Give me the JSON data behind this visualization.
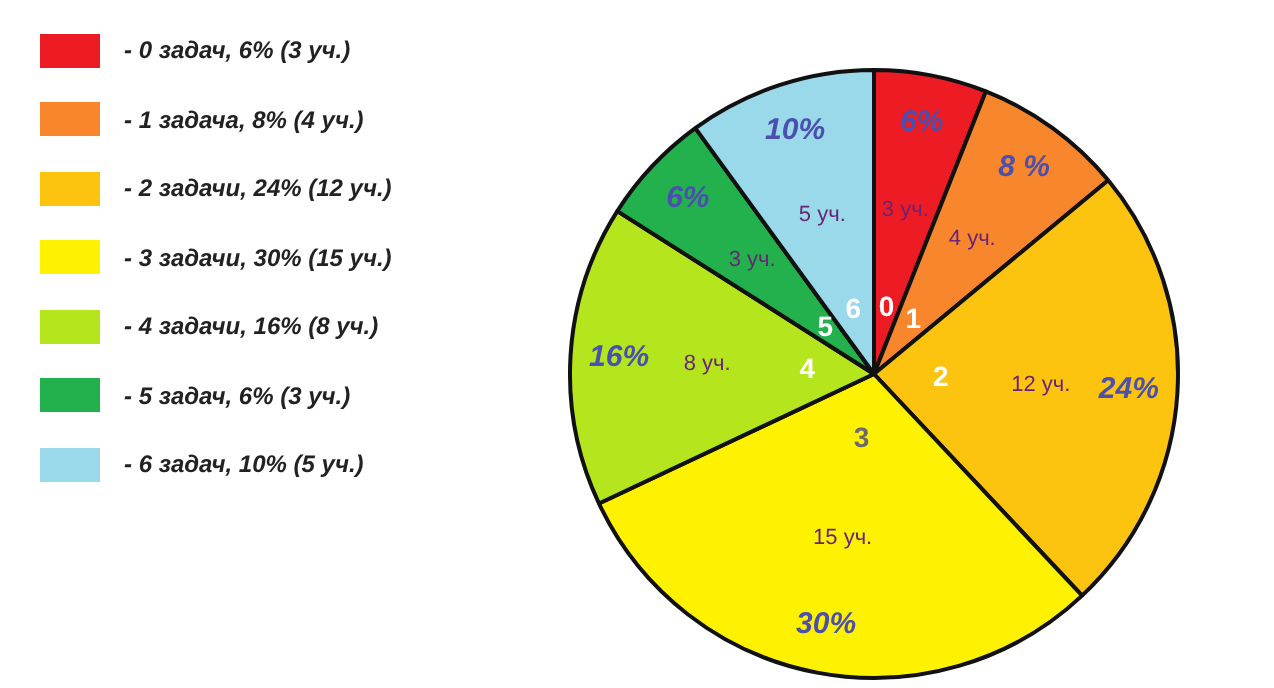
{
  "chart_data": {
    "type": "pie",
    "categories": [
      "- 0 задач, 6% (3 уч.)",
      "- 1 задача, 8% (4 уч.)",
      "- 2 задачи, 24% (12 уч.)",
      "- 3 задачи, 30% (15 уч.)",
      "- 4 задачи, 16% (8 уч.)",
      "- 5 задач, 6% (3 уч.)",
      "- 6 задач, 10% (5 уч.)"
    ],
    "values": [
      6,
      8,
      24,
      30,
      16,
      6,
      10
    ],
    "colors": [
      "#ed1c24",
      "#f7862c",
      "#fcc30f",
      "#fff200",
      "#b5e61d",
      "#22b14c",
      "#99d9ea"
    ],
    "value_labels": [
      "6%",
      "8 %",
      "24%",
      "30%",
      "16%",
      "6%",
      "10%"
    ],
    "annotations": [
      {
        "text": "3 уч.",
        "x": "- 0 задач, 6% (3 уч.)"
      },
      {
        "text": "4 уч.",
        "x": "- 1 задача, 8% (4 уч.)"
      },
      {
        "text": "12 уч.",
        "x": "- 2 задачи, 24% (12 уч.)"
      },
      {
        "text": "15 уч.",
        "x": "- 3 задачи, 30% (15 уч.)"
      },
      {
        "text": "8 уч.",
        "x": "- 4 задачи, 16% (8 уч.)"
      },
      {
        "text": "3 уч.",
        "x": "- 5 задач, 6% (3 уч.)"
      },
      {
        "text": "5 уч.",
        "x": "- 6 задач, 10% (5 уч.)"
      },
      {
        "text": "0",
        "x": "- 0 задач, 6% (3 уч.)"
      },
      {
        "text": "1",
        "x": "- 1 задача, 8% (4 уч.)"
      },
      {
        "text": "2",
        "x": "- 2 задачи, 24% (12 уч.)"
      },
      {
        "text": "3",
        "x": "- 3 задачи, 30% (15 уч.)"
      },
      {
        "text": "4",
        "x": "- 4 задачи, 16% (8 уч.)"
      },
      {
        "text": "5",
        "x": "- 5 задач, 6% (3 уч.)"
      },
      {
        "text": "6",
        "x": "- 6 задач, 10% (5 уч.)"
      }
    ],
    "legend": "left"
  }
}
